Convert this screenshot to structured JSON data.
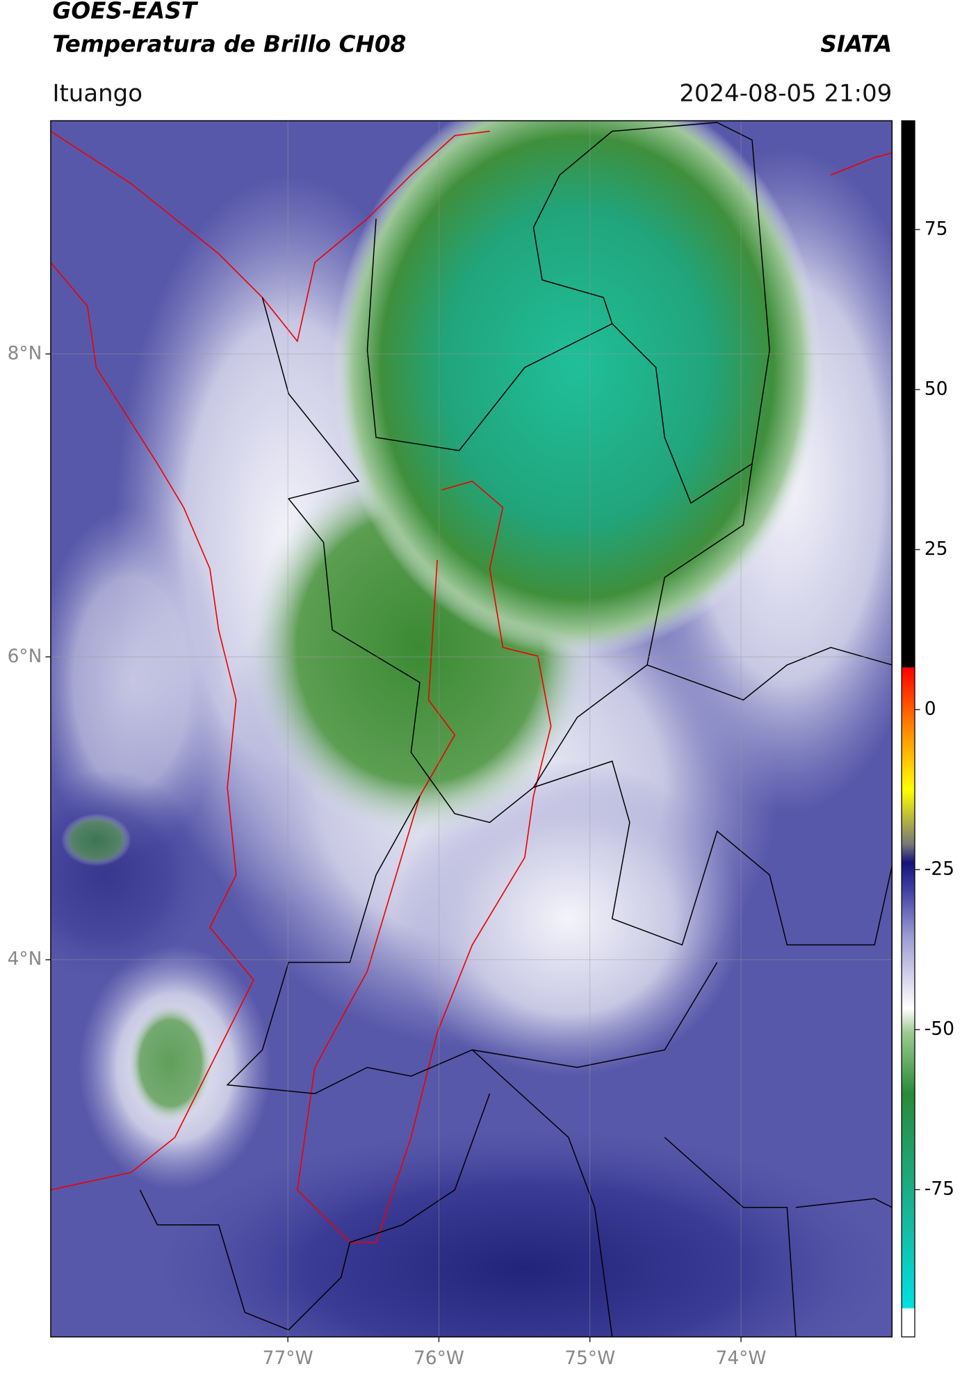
{
  "header": {
    "title": "GOES-EAST",
    "subtitle": "Temperatura de Brillo CH08",
    "source": "SIATA",
    "location": "Ituango",
    "datetime": "2024-08-05 21:09"
  },
  "map": {
    "xlim": [
      -78.57,
      -73.0
    ],
    "ylim": [
      1.51,
      9.54
    ],
    "xticks": [
      {
        "value": -77,
        "label": "77°W"
      },
      {
        "value": -76,
        "label": "76°W"
      },
      {
        "value": -75,
        "label": "75°W"
      },
      {
        "value": -74,
        "label": "74°W"
      }
    ],
    "yticks": [
      {
        "value": 4,
        "label": "4°N"
      },
      {
        "value": 6,
        "label": "6°N"
      },
      {
        "value": 8,
        "label": "8°N"
      }
    ],
    "grid": true
  },
  "colorbar": {
    "lim": [
      -98,
      92
    ],
    "ticks": [
      -75,
      -50,
      -25,
      0,
      25,
      50,
      75
    ]
  }
}
